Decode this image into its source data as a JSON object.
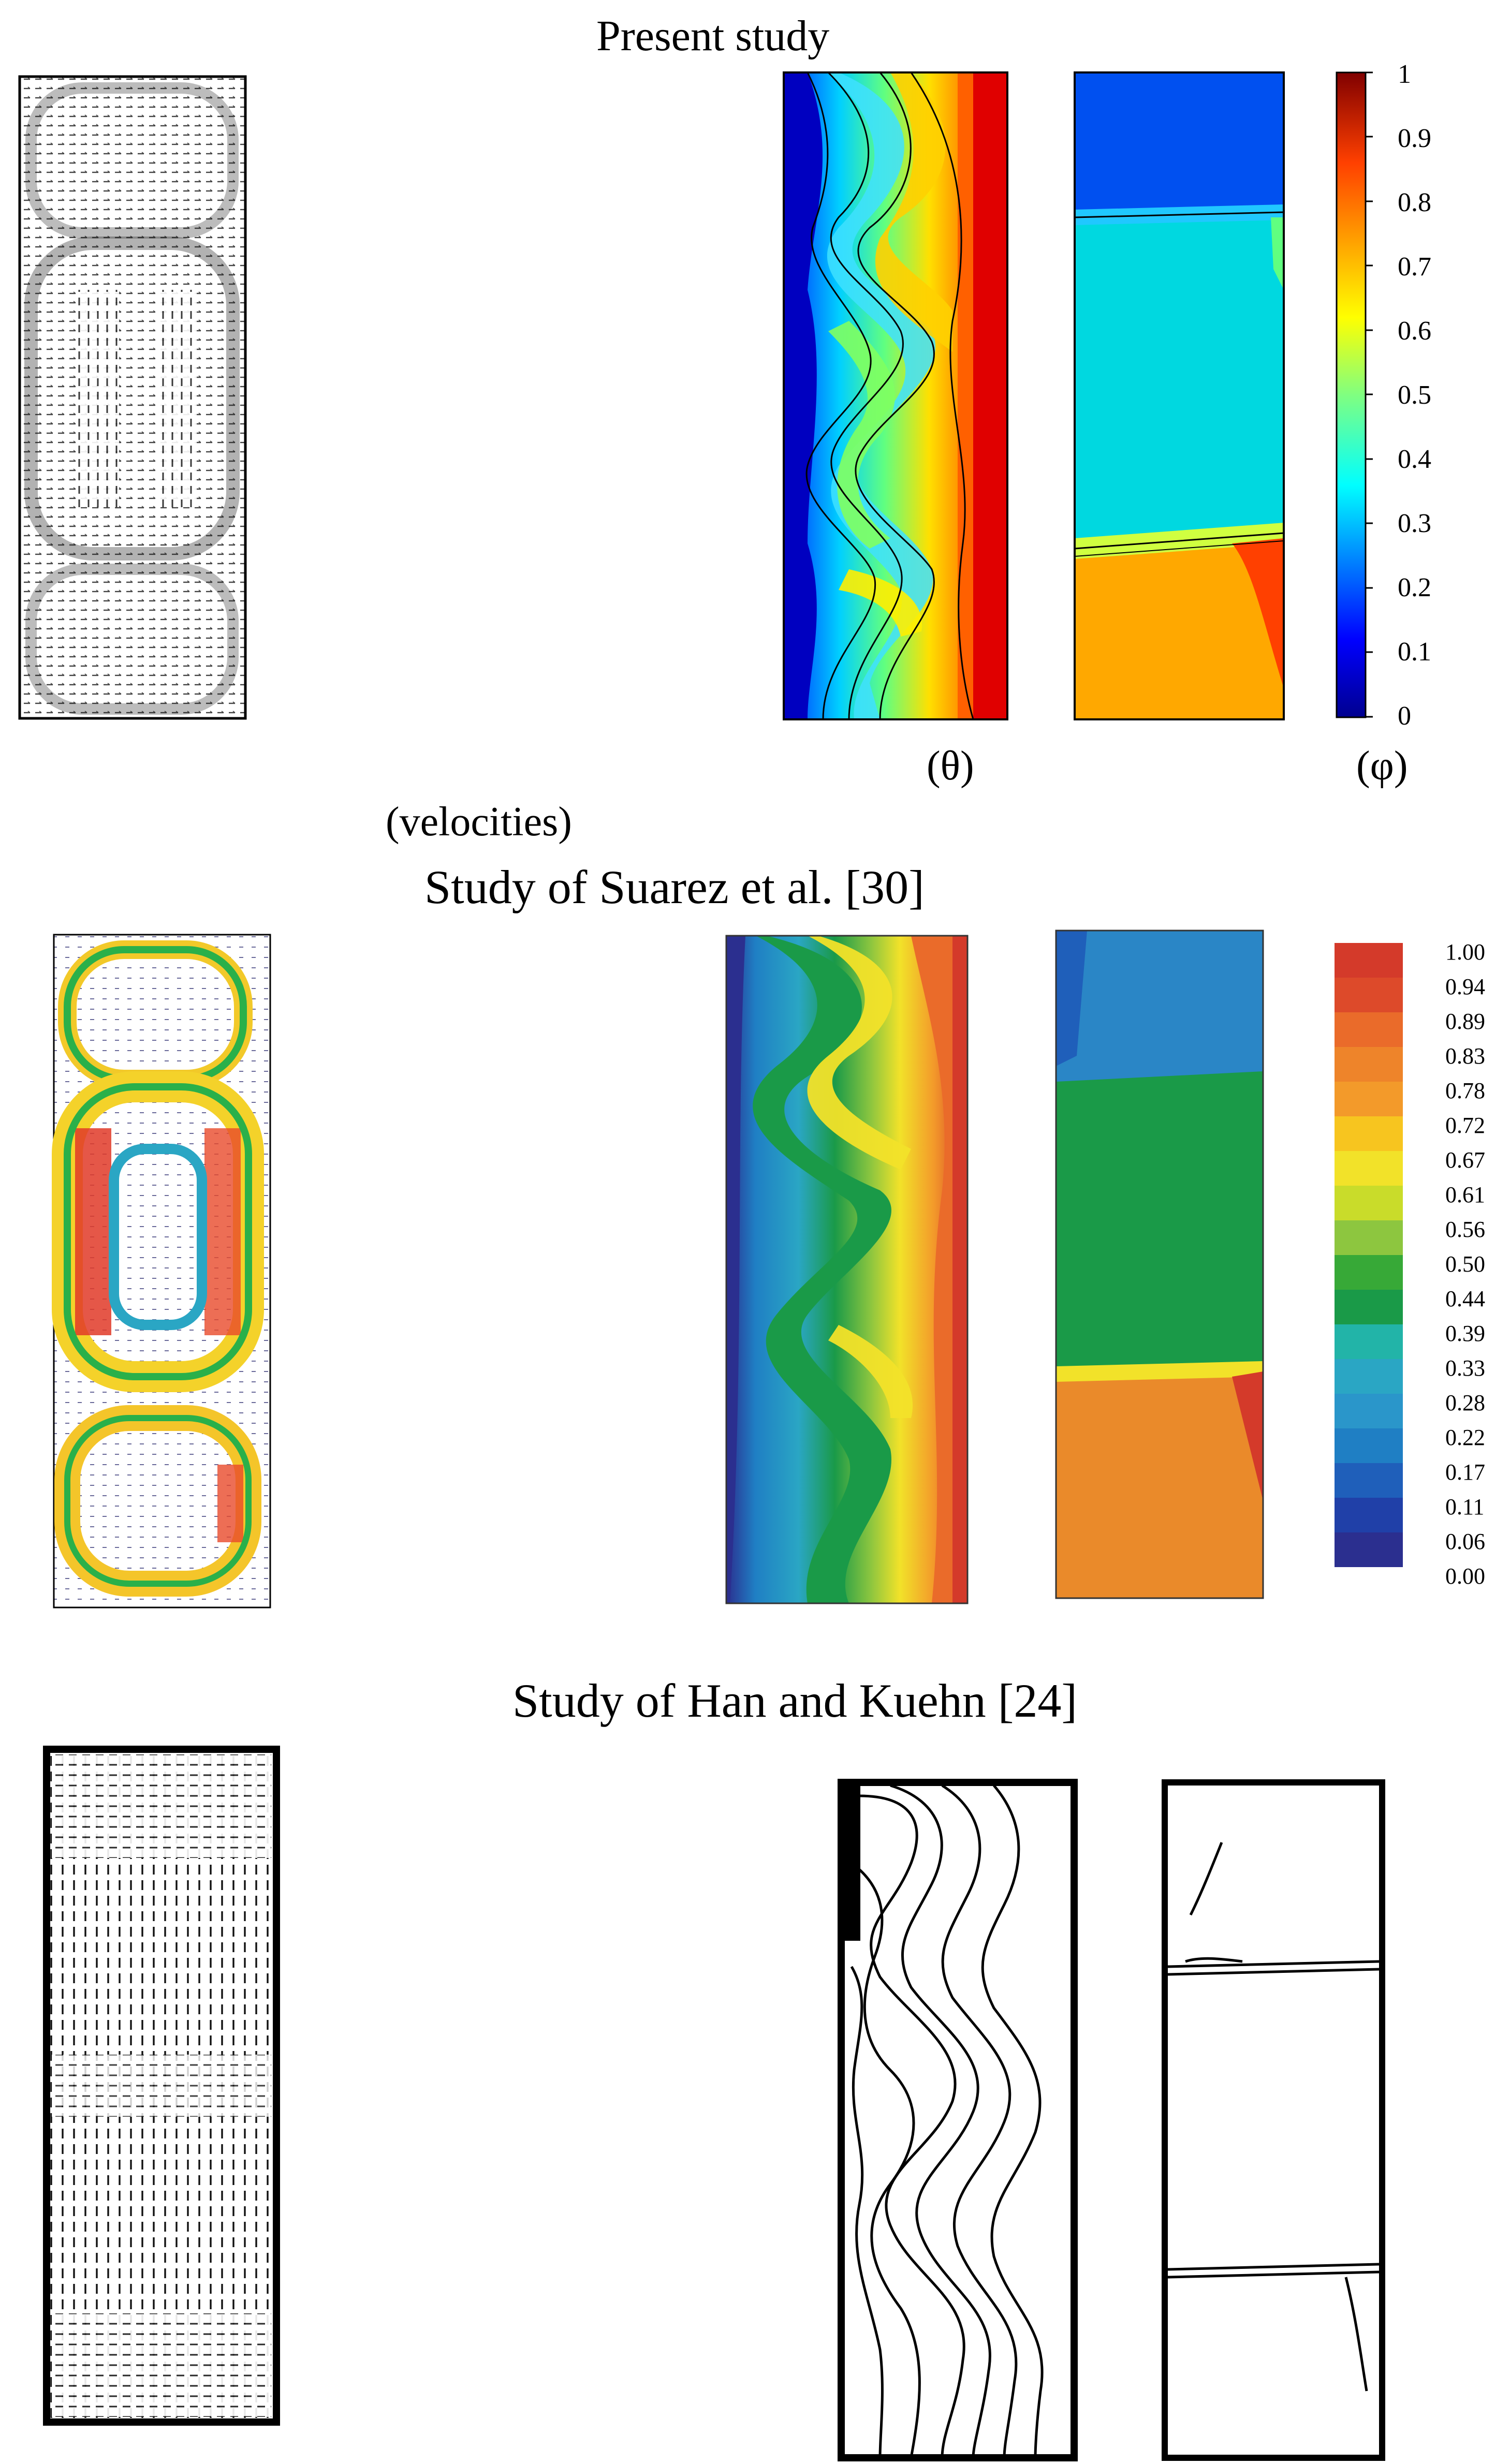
{
  "headings": {
    "present": "Present study",
    "suarez": "Study of Suarez et al. [30]",
    "han": "Study of Han and Kuehn [24]"
  },
  "labels": {
    "theta": "(θ)",
    "phi": "(φ)",
    "velocities": "(velocities)"
  },
  "colorbar_present": {
    "ticks": [
      "1",
      "0.9",
      "0.8",
      "0.7",
      "0.6",
      "0.5",
      "0.4",
      "0.3",
      "0.2",
      "0.1",
      "0"
    ]
  },
  "colorbar_suarez": {
    "ticks": [
      "1.00",
      "0.94",
      "0.89",
      "0.83",
      "0.78",
      "0.72",
      "0.67",
      "0.61",
      "0.56",
      "0.50",
      "0.44",
      "0.39",
      "0.33",
      "0.28",
      "0.22",
      "0.17",
      "0.11",
      "0.06",
      "0.00"
    ]
  },
  "colors": {
    "jet": [
      "#00008f",
      "#0000ff",
      "#0080ff",
      "#00ffff",
      "#80ff80",
      "#ffff00",
      "#ff8000",
      "#ff0000",
      "#800000"
    ],
    "suarez": [
      "#2b2f8f",
      "#2040a8",
      "#1f5fba",
      "#2a86c6",
      "#2aa6c4",
      "#22b4a8",
      "#1a9a48",
      "#37a937",
      "#8dc63f",
      "#f2e229",
      "#f7c51f",
      "#f39a2a",
      "#ea6b2a",
      "#d43a2a"
    ]
  }
}
